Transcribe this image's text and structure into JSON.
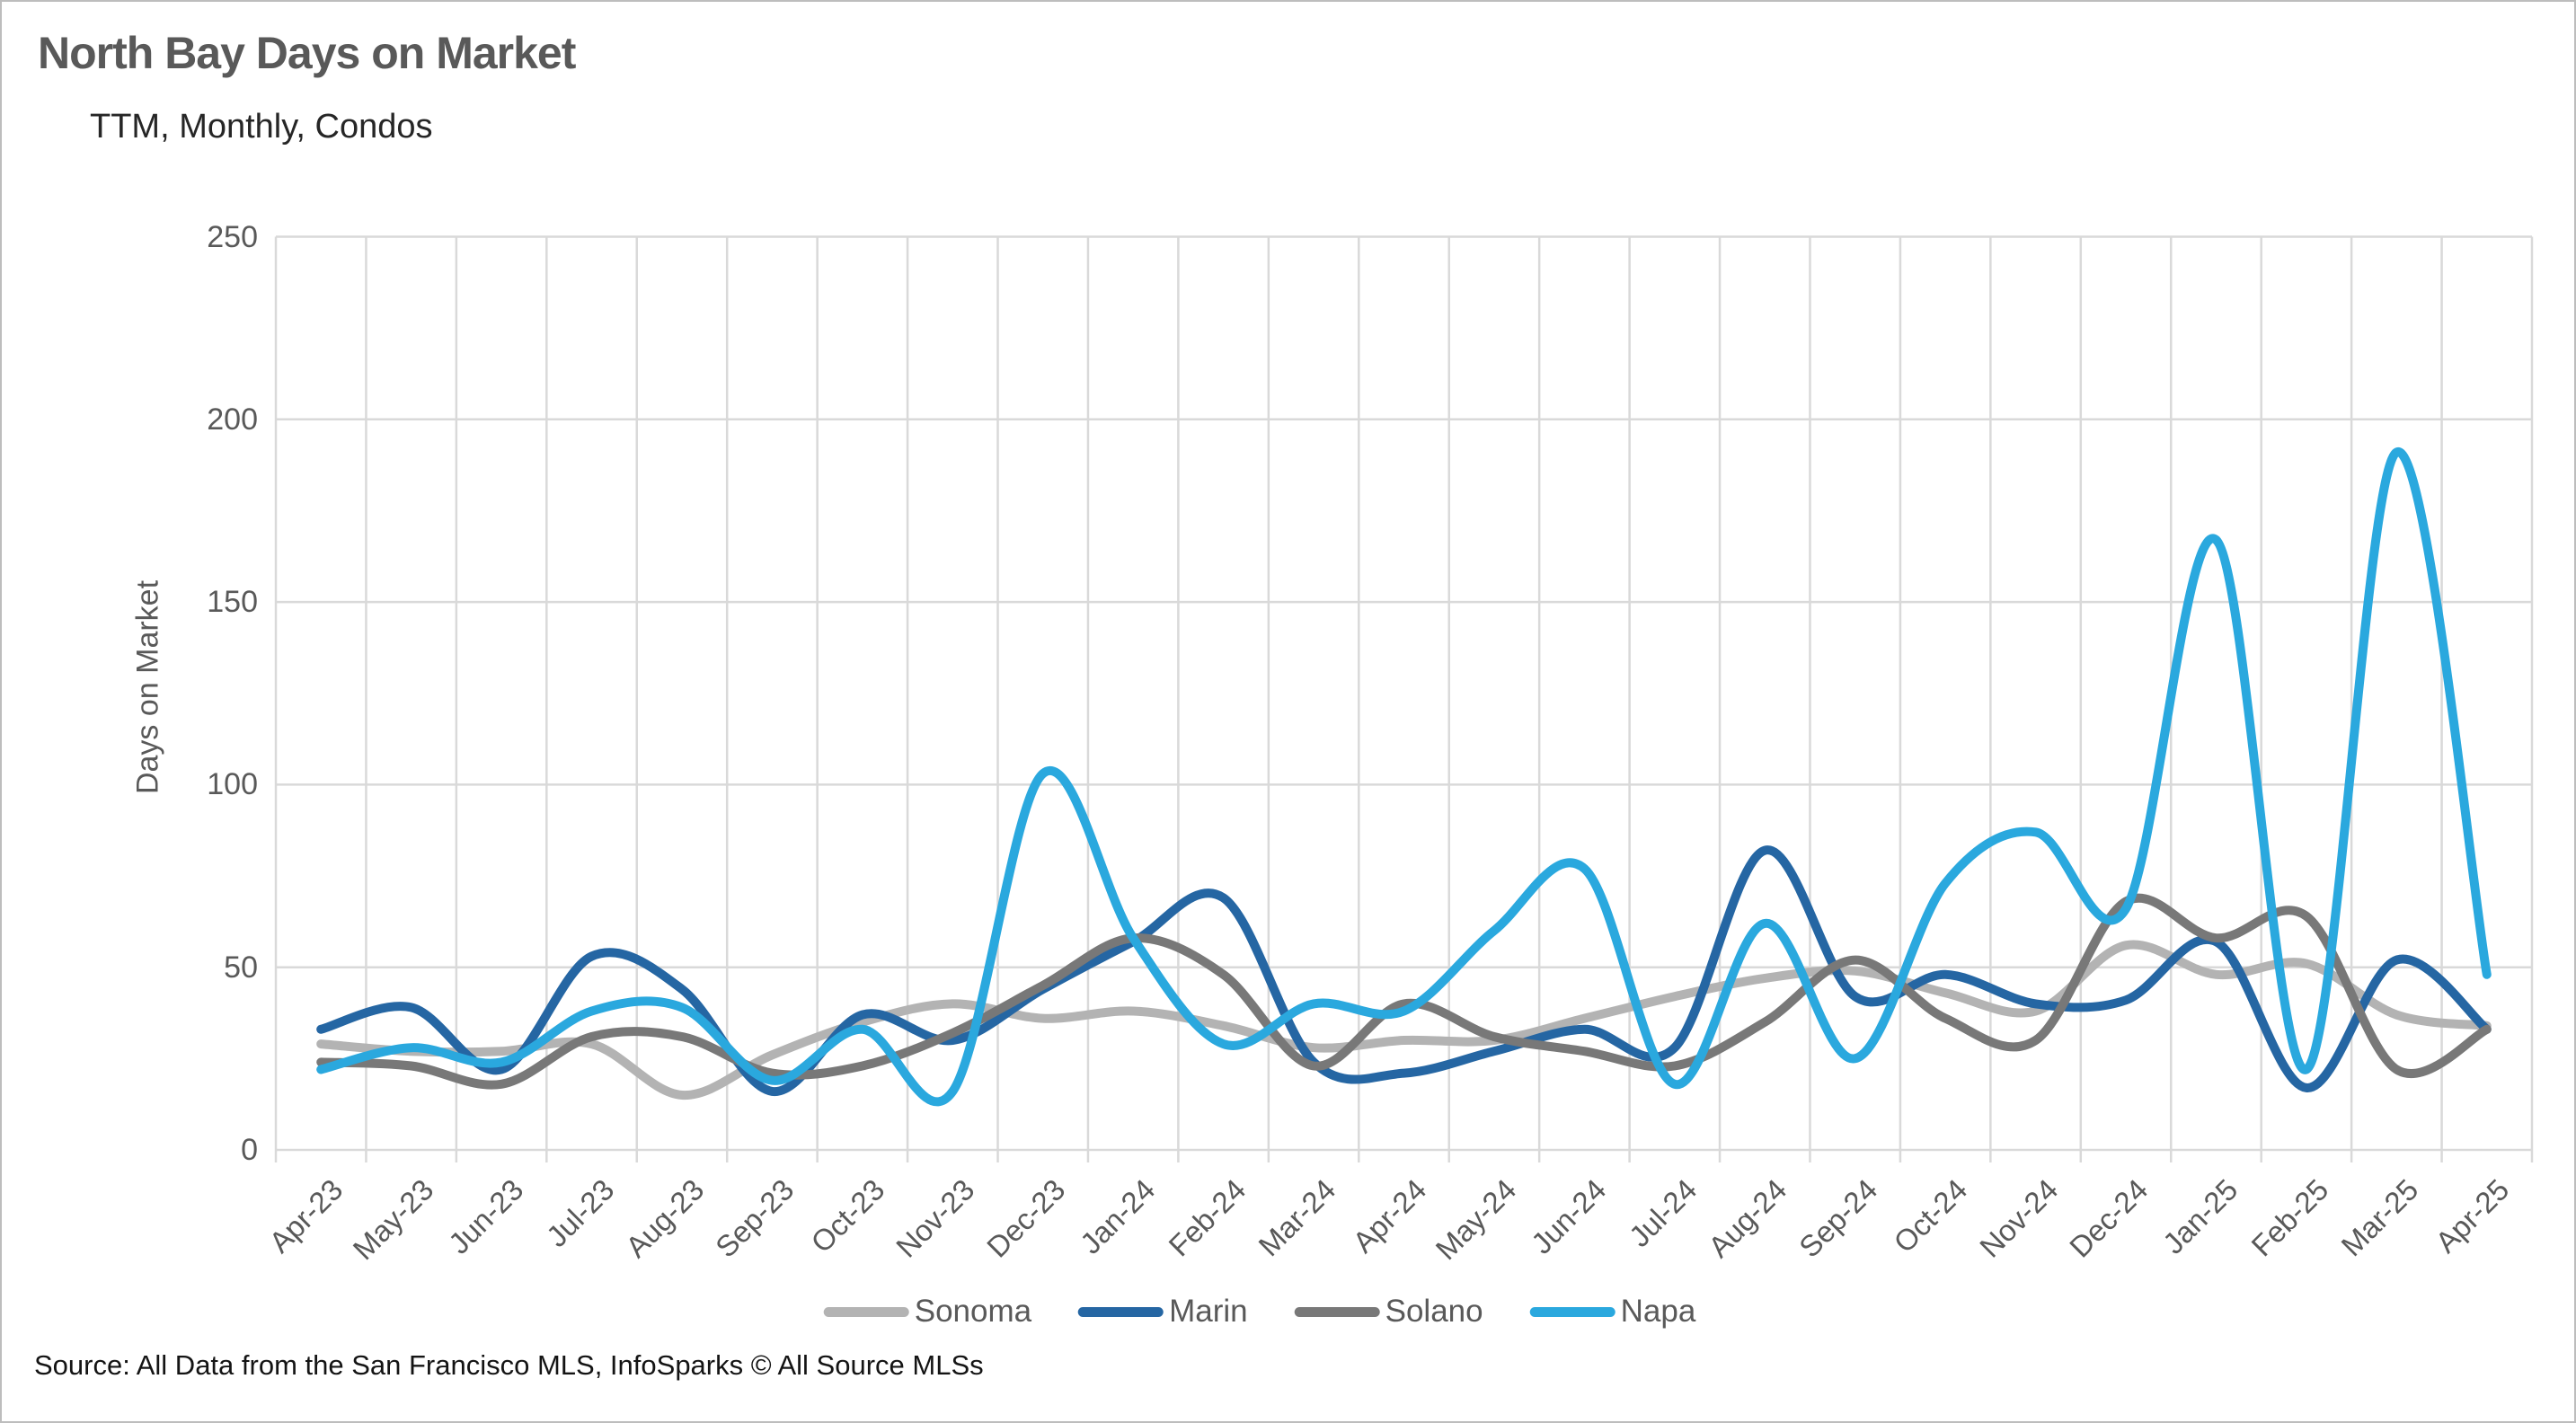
{
  "title": "North Bay Days on Market",
  "subtitle": "TTM, Monthly, Condos",
  "source_note": "Source: All Data from the San Francisco MLS, InfoSparks © All Source MLSs",
  "colors": {
    "gridline": "#d9d9d9",
    "axis_text": "#595959",
    "title_text": "#595959",
    "sonoma": "#b3b3b3",
    "marin": "#2566a3",
    "solano": "#787878",
    "napa": "#2aa8de"
  },
  "chart_data": {
    "type": "line",
    "smoothed": true,
    "title": "North Bay Days on Market",
    "subtitle": "TTM, Monthly, Condos",
    "xlabel": "",
    "ylabel": "Days on Market",
    "ylim": [
      0,
      250
    ],
    "y_ticks": [
      0,
      50,
      100,
      150,
      200,
      250
    ],
    "grid": true,
    "legend_position": "bottom",
    "categories": [
      "Apr-23",
      "May-23",
      "Jun-23",
      "Jul-23",
      "Aug-23",
      "Sep-23",
      "Oct-23",
      "Nov-23",
      "Dec-23",
      "Jan-24",
      "Feb-24",
      "Mar-24",
      "Apr-24",
      "May-24",
      "Jun-24",
      "Jul-24",
      "Aug-24",
      "Sep-24",
      "Oct-24",
      "Nov-24",
      "Dec-24",
      "Jan-25",
      "Feb-25",
      "Mar-25",
      "Apr-25"
    ],
    "series": [
      {
        "name": "Sonoma",
        "color": "#b3b3b3",
        "values": [
          29,
          27,
          27,
          29,
          15,
          26,
          35,
          40,
          36,
          38,
          34,
          28,
          30,
          30,
          36,
          42,
          47,
          49,
          43,
          38,
          56,
          48,
          51,
          37,
          34
        ]
      },
      {
        "name": "Marin",
        "color": "#2566a3",
        "values": [
          33,
          39,
          22,
          53,
          44,
          16,
          37,
          30,
          44,
          57,
          69,
          24,
          21,
          27,
          33,
          28,
          82,
          42,
          48,
          40,
          41,
          57,
          17,
          52,
          33
        ]
      },
      {
        "name": "Solano",
        "color": "#787878",
        "values": [
          24,
          23,
          18,
          31,
          31,
          21,
          23,
          32,
          45,
          58,
          48,
          23,
          40,
          31,
          27,
          23,
          35,
          52,
          36,
          30,
          68,
          58,
          64,
          22,
          33
        ]
      },
      {
        "name": "Napa",
        "color": "#2aa8de",
        "values": [
          22,
          28,
          24,
          38,
          39,
          19,
          33,
          16,
          103,
          58,
          29,
          40,
          38,
          60,
          77,
          18,
          62,
          25,
          73,
          87,
          66,
          167,
          22,
          191,
          48
        ]
      }
    ]
  }
}
